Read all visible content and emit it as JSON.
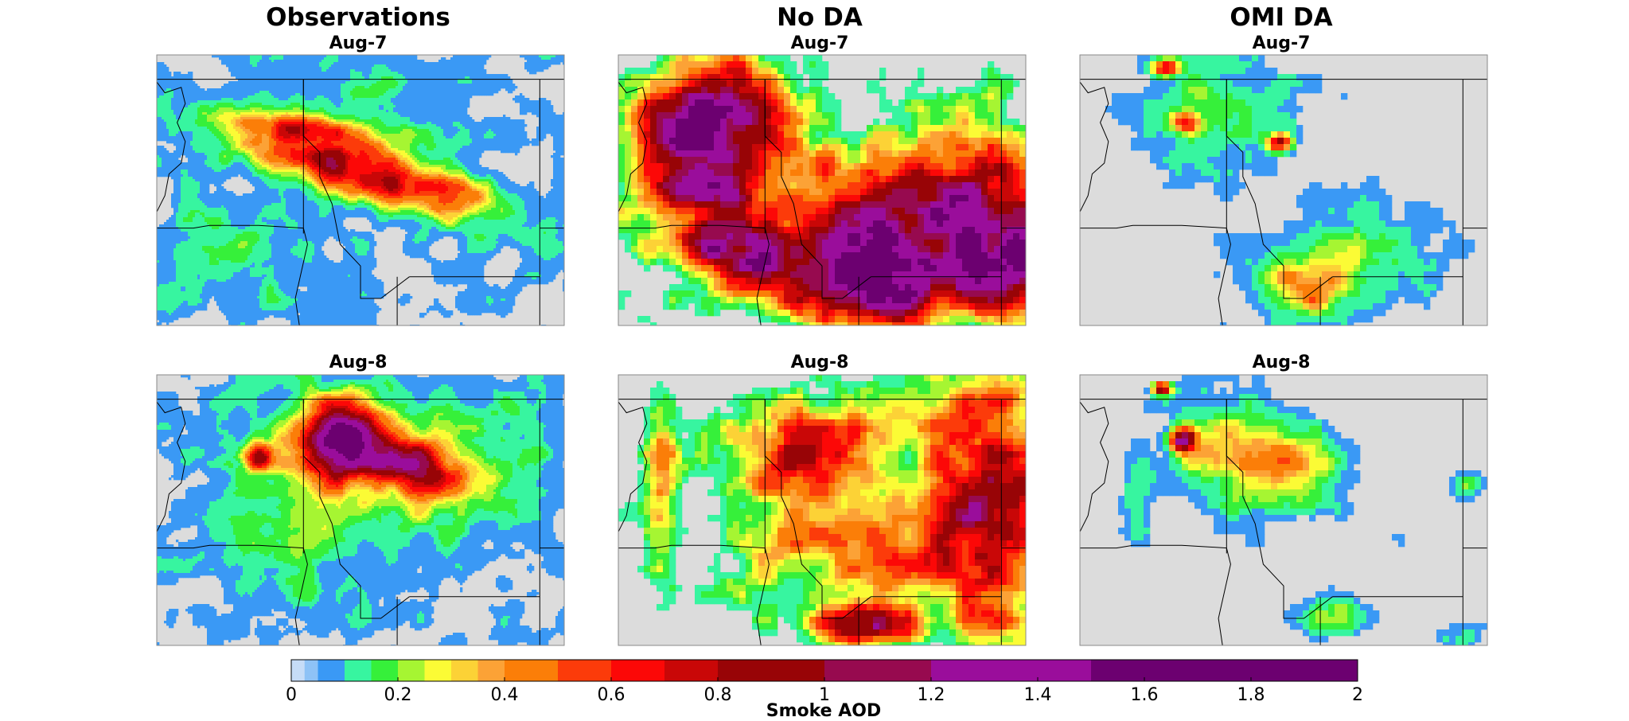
{
  "columns": [
    {
      "title": "Observations"
    },
    {
      "title": "No DA"
    },
    {
      "title": "OMI DA"
    }
  ],
  "rows": [
    {
      "label": "Aug-7"
    },
    {
      "label": "Aug-8"
    }
  ],
  "colorbar": {
    "label": "Smoke AOD",
    "ticks": [
      "0",
      "0.2",
      "0.4",
      "0.6",
      "0.8",
      "1",
      "1.2",
      "1.4",
      "1.6",
      "1.8",
      "2"
    ],
    "boundaries": [
      0,
      0.025,
      0.05,
      0.1,
      0.15,
      0.2,
      0.25,
      0.3,
      0.35,
      0.4,
      0.5,
      0.6,
      0.7,
      0.8,
      1.0,
      1.2,
      1.5,
      2.0
    ],
    "colors": [
      "#c6dcf7",
      "#8ec2f6",
      "#3a99f5",
      "#37f5a0",
      "#36f03a",
      "#a6f532",
      "#fbfb35",
      "#fcd236",
      "#fca236",
      "#fb7e08",
      "#fc3b0a",
      "#fc0807",
      "#c90707",
      "#980406",
      "#970a4f",
      "#9a0d9b",
      "#6c0070"
    ],
    "range": [
      0,
      2
    ]
  },
  "map_colors": {
    "background": "#dcdcdc",
    "border": "#000000"
  },
  "chart_data": [
    {
      "type": "heatmap",
      "title": "Aug-7",
      "column": "Observations",
      "variable": "Smoke AOD",
      "peak_aod_approx": 0.8,
      "smoke_extent": "narrow plume across Idaho/Montana"
    },
    {
      "type": "heatmap",
      "title": "Aug-7",
      "column": "No DA",
      "variable": "Smoke AOD",
      "peak_aod_approx": 2.0,
      "smoke_extent": "widespread high AOD, Washington to Montana/Wyoming"
    },
    {
      "type": "heatmap",
      "title": "Aug-7",
      "column": "OMI DA",
      "variable": "Smoke AOD",
      "peak_aod_approx": 0.7,
      "smoke_extent": "low AOD, northern and southeastern regions"
    },
    {
      "type": "heatmap",
      "title": "Aug-8",
      "column": "Observations",
      "variable": "Smoke AOD",
      "peak_aod_approx": 1.1,
      "smoke_extent": "large plume over northern Idaho/Montana"
    },
    {
      "type": "heatmap",
      "title": "Aug-8",
      "column": "No DA",
      "variable": "Smoke AOD",
      "peak_aod_approx": 1.0,
      "smoke_extent": "broad moderate AOD across domain"
    },
    {
      "type": "heatmap",
      "title": "Aug-8",
      "column": "OMI DA",
      "variable": "Smoke AOD",
      "peak_aod_approx": 1.2,
      "smoke_extent": "moderate plume over northern Idaho/Montana"
    }
  ]
}
